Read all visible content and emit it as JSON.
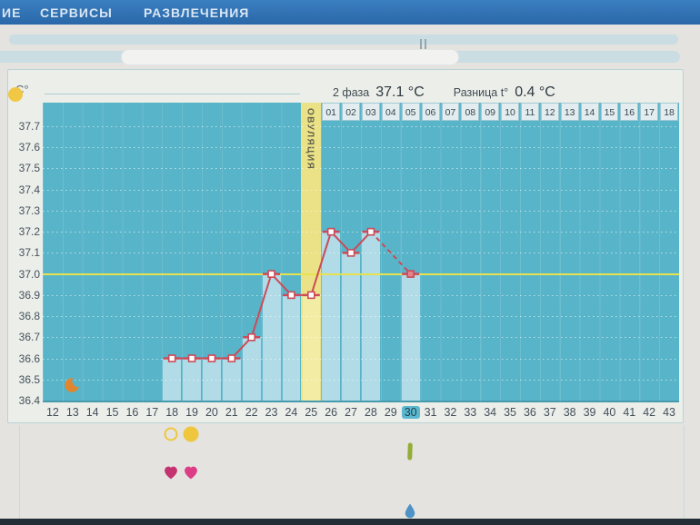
{
  "nav": {
    "items": [
      "ИЕ",
      "СЕРВИСЫ",
      "РАЗВЛЕЧЕНИЯ"
    ]
  },
  "panel": {
    "unit_label": "C°",
    "phase_summary": {
      "phase_label": "2 фаза",
      "phase_value": "37.1 °C",
      "diff_label": "Разница t°",
      "diff_value": "0.4 °C"
    }
  },
  "chart_data": {
    "type": "line",
    "ylabel": "C°",
    "ylim": [
      36.4,
      37.7
    ],
    "yticks": [
      "37.7",
      "37.6",
      "37.5",
      "37.4",
      "37.3",
      "37.2",
      "37.1",
      "37.0",
      "36.9",
      "36.8",
      "36.7",
      "36.6",
      "36.5",
      "36.4"
    ],
    "x_days": [
      12,
      13,
      14,
      15,
      16,
      17,
      18,
      19,
      20,
      21,
      22,
      23,
      24,
      25,
      26,
      27,
      28,
      29,
      30,
      31,
      32,
      33,
      34,
      35,
      36,
      37,
      38,
      39,
      40,
      41,
      42,
      43
    ],
    "phase2_cells": [
      "01",
      "02",
      "03",
      "04",
      "05",
      "06",
      "07",
      "08",
      "09",
      "10",
      "11",
      "12",
      "13",
      "14",
      "15",
      "16",
      "17",
      "18"
    ],
    "baseline": {
      "value": 37.0
    },
    "ovulation": {
      "day": 25,
      "label": "ОВУЛЯЦИЯ"
    },
    "highlight_day": 30,
    "points": [
      {
        "day": 18,
        "temp": 36.6
      },
      {
        "day": 19,
        "temp": 36.6
      },
      {
        "day": 20,
        "temp": 36.6
      },
      {
        "day": 21,
        "temp": 36.6
      },
      {
        "day": 22,
        "temp": 36.7
      },
      {
        "day": 23,
        "temp": 37.0
      },
      {
        "day": 24,
        "temp": 36.9
      },
      {
        "day": 25,
        "temp": 36.9
      },
      {
        "day": 26,
        "temp": 37.2
      },
      {
        "day": 27,
        "temp": 37.1
      },
      {
        "day": 28,
        "temp": 37.2
      }
    ],
    "projected_point": {
      "day": 30,
      "temp": 37.0
    },
    "dashed_from_day": 28,
    "grid": true,
    "legend_position": "none"
  },
  "events": [
    {
      "day": 13,
      "icon": "crescent-moon",
      "slot": "chart",
      "color": "#e0862e"
    },
    {
      "day": 18,
      "icon": "circle-outline",
      "slot": "a",
      "color": "#efc73d"
    },
    {
      "day": 19,
      "icon": "circle-filled",
      "slot": "a",
      "color": "#efc73d"
    },
    {
      "day": 18,
      "icon": "heart",
      "slot": "c",
      "color": "#c4336f"
    },
    {
      "day": 19,
      "icon": "heart",
      "slot": "c",
      "color": "#dd3d85"
    },
    {
      "day": 30,
      "icon": "test-stick",
      "slot": "b",
      "color": "#94ad36"
    },
    {
      "day": 30,
      "icon": "droplet",
      "slot": "d",
      "color": "#4e92c6"
    }
  ],
  "colors": {
    "nav_bg": "#2f72b4",
    "plot_bg": "#58b4c8",
    "bar": "#b0dbe7",
    "ovulation_band": "#ebe287",
    "ovulation_bar": "#f2eca5",
    "baseline_line": "#e9e24f",
    "temp_line": "#cc4a58",
    "marker_fill": "#ffffff",
    "projected_marker_fill": "#e2858c",
    "highlight_label_bg": "#5ab8d0",
    "header_dot": "#f1c845"
  }
}
